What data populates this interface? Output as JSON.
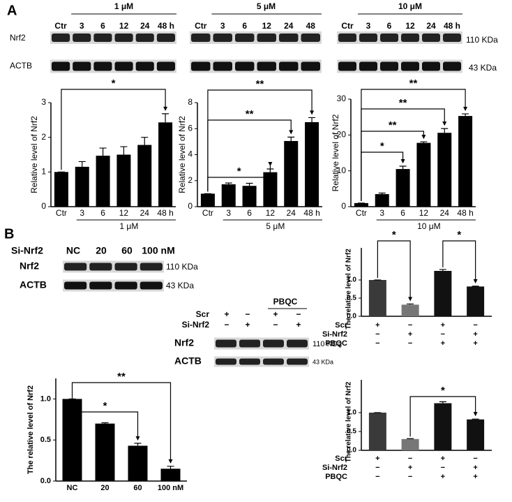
{
  "panel_labels": [
    "A",
    "B"
  ],
  "blots": {
    "a": {
      "groups": [
        {
          "concentration": "1 μM",
          "lanes": [
            "Ctr",
            "3",
            "6",
            "12",
            "24",
            "48 h"
          ]
        },
        {
          "concentration": "5 μM",
          "lanes": [
            "Ctr",
            "3",
            "6",
            "12",
            "24",
            "48"
          ]
        },
        {
          "concentration": "10 μM",
          "lanes": [
            "Ctr",
            "3",
            "6",
            "12",
            "24",
            "48 h"
          ]
        }
      ],
      "rows": [
        "Nrf2",
        "ACTB"
      ],
      "sizes": [
        "110 KDa",
        "43 KDa"
      ]
    },
    "b1": {
      "treatment": "Si-Nrf2",
      "lanes": [
        "NC",
        "20",
        "60",
        "100 nM"
      ],
      "rows": [
        "Nrf2",
        "ACTB"
      ],
      "sizes": [
        "110 KDa",
        "43 KDa"
      ]
    },
    "b2": {
      "header": "PBQC",
      "conditions": [
        {
          "name": "Scr",
          "signs": [
            "+",
            "−",
            "+",
            "−"
          ]
        },
        {
          "name": "Si-Nrf2",
          "signs": [
            "−",
            "+",
            "−",
            "+"
          ]
        }
      ],
      "rows": [
        "Nrf2",
        "ACTB"
      ],
      "sizes": [
        "110 KDa",
        "43 KDa"
      ]
    }
  },
  "chart_data": [
    {
      "type": "bar",
      "ylabel": "Relative level of Nrf2",
      "xlabel": "1 μM",
      "categories": [
        "Ctr",
        "3",
        "6",
        "12",
        "24",
        "48 h"
      ],
      "values": [
        1,
        1.15,
        1.47,
        1.5,
        1.78,
        2.43
      ],
      "errors": [
        0,
        0.15,
        0.22,
        0.23,
        0.22,
        0.25
      ],
      "color": "#000000",
      "ylim": [
        0,
        3
      ],
      "yticks": [
        0,
        1,
        2,
        3
      ],
      "annotations": [
        {
          "text": "*",
          "from": 0,
          "to": 5
        }
      ]
    },
    {
      "type": "bar",
      "ylabel": "Relative level of Nrf2",
      "xlabel": "5 μM",
      "categories": [
        "Ctr",
        "3",
        "6",
        "12",
        "24",
        "48 h"
      ],
      "values": [
        1,
        1.72,
        1.6,
        2.65,
        5.05,
        6.5
      ],
      "errors": [
        0,
        0.1,
        0.2,
        0.25,
        0.3,
        0.35
      ],
      "color": "#000000",
      "ylim": [
        0,
        8
      ],
      "yticks": [
        0,
        2,
        4,
        6,
        8
      ],
      "annotations": [
        {
          "text": "*",
          "from": 0,
          "to": 3
        },
        {
          "text": "**",
          "from": 0,
          "to": 4
        },
        {
          "text": "**",
          "from": 0,
          "to": 5
        }
      ]
    },
    {
      "type": "bar",
      "ylabel": "Relative level of Nrf2",
      "xlabel": "10 μM",
      "categories": [
        "Ctr",
        "3",
        "6",
        "12",
        "24",
        "48 h"
      ],
      "values": [
        1,
        3.5,
        10.5,
        17.8,
        20.6,
        25.3
      ],
      "errors": [
        0,
        0.3,
        0.8,
        0.3,
        1.2,
        0.6
      ],
      "color": "#000000",
      "ylim": [
        0,
        30
      ],
      "yticks": [
        0,
        10,
        20,
        30
      ],
      "annotations": [
        {
          "text": "*",
          "from": 0,
          "to": 2
        },
        {
          "text": "**",
          "from": 0,
          "to": 3
        },
        {
          "text": "**",
          "from": 0,
          "to": 4
        },
        {
          "text": "**",
          "from": 0,
          "to": 5
        }
      ]
    },
    {
      "type": "bar",
      "ylabel": "The relative level of Nrf2",
      "categories": [
        "NC",
        "20",
        "60",
        "100 nM"
      ],
      "values": [
        1.0,
        0.7,
        0.43,
        0.15
      ],
      "errors": [
        0,
        0.01,
        0.03,
        0.03
      ],
      "color": "#000000",
      "ylim": [
        0,
        1.25
      ],
      "yticks": [
        {
          "value": 0,
          "label": "0.0"
        },
        {
          "value": 0.5,
          "label": "0.5"
        },
        {
          "value": 1,
          "label": "1.0"
        }
      ],
      "annotations": [
        {
          "text": "*",
          "from": 0,
          "to": 2
        },
        {
          "text": "**",
          "from": 0,
          "to": 3
        }
      ]
    },
    {
      "type": "bar",
      "ylabel": "The relative level of Nrf2",
      "categories": [
        null,
        null,
        null,
        null
      ],
      "conditions": [
        {
          "name": "Scr",
          "signs": [
            "+",
            "−",
            "+",
            "−"
          ]
        },
        {
          "name": "Si-Nrf2",
          "signs": [
            "−",
            "+",
            "−",
            "+"
          ]
        },
        {
          "name": "PBQC",
          "signs": [
            "−",
            "−",
            "+",
            "+"
          ]
        }
      ],
      "values": [
        1.0,
        0.32,
        1.25,
        0.82
      ],
      "errors": [
        0,
        0.02,
        0.04,
        0.01
      ],
      "colors": [
        "#3a3a3a",
        "#777777",
        "#111111",
        "#111111"
      ],
      "ylim": [
        0,
        1.5
      ],
      "yticks": [
        {
          "value": 0,
          "label": "0.0"
        },
        {
          "value": 0.5,
          "label": "0.5"
        },
        {
          "value": 1,
          "label": "1.0"
        }
      ],
      "annotations": [
        {
          "text": "*",
          "from": 0,
          "to": 1
        },
        {
          "text": "*",
          "from": 2,
          "to": 3
        }
      ]
    },
    {
      "type": "bar",
      "ylabel": "The relative level of Nrf2",
      "categories": [
        null,
        null,
        null,
        null
      ],
      "conditions": [
        {
          "name": "Scr",
          "signs": [
            "+",
            "−",
            "+",
            "−"
          ]
        },
        {
          "name": "Si-Nrf2",
          "signs": [
            "−",
            "+",
            "−",
            "+"
          ]
        },
        {
          "name": "PBQC",
          "signs": [
            "−",
            "−",
            "+",
            "+"
          ]
        }
      ],
      "values": [
        1.0,
        0.3,
        1.25,
        0.82
      ],
      "errors": [
        0,
        0.01,
        0.04,
        0.01
      ],
      "colors": [
        "#3a3a3a",
        "#777777",
        "#111111",
        "#111111"
      ],
      "ylim": [
        0,
        1.5
      ],
      "yticks": [
        {
          "value": 0,
          "label": "0.0"
        },
        {
          "value": 0.5,
          "label": "0.5"
        },
        {
          "value": 1,
          "label": "1.0"
        }
      ],
      "annotations": [
        {
          "text": "*",
          "from": 1,
          "to": 3
        }
      ]
    }
  ]
}
